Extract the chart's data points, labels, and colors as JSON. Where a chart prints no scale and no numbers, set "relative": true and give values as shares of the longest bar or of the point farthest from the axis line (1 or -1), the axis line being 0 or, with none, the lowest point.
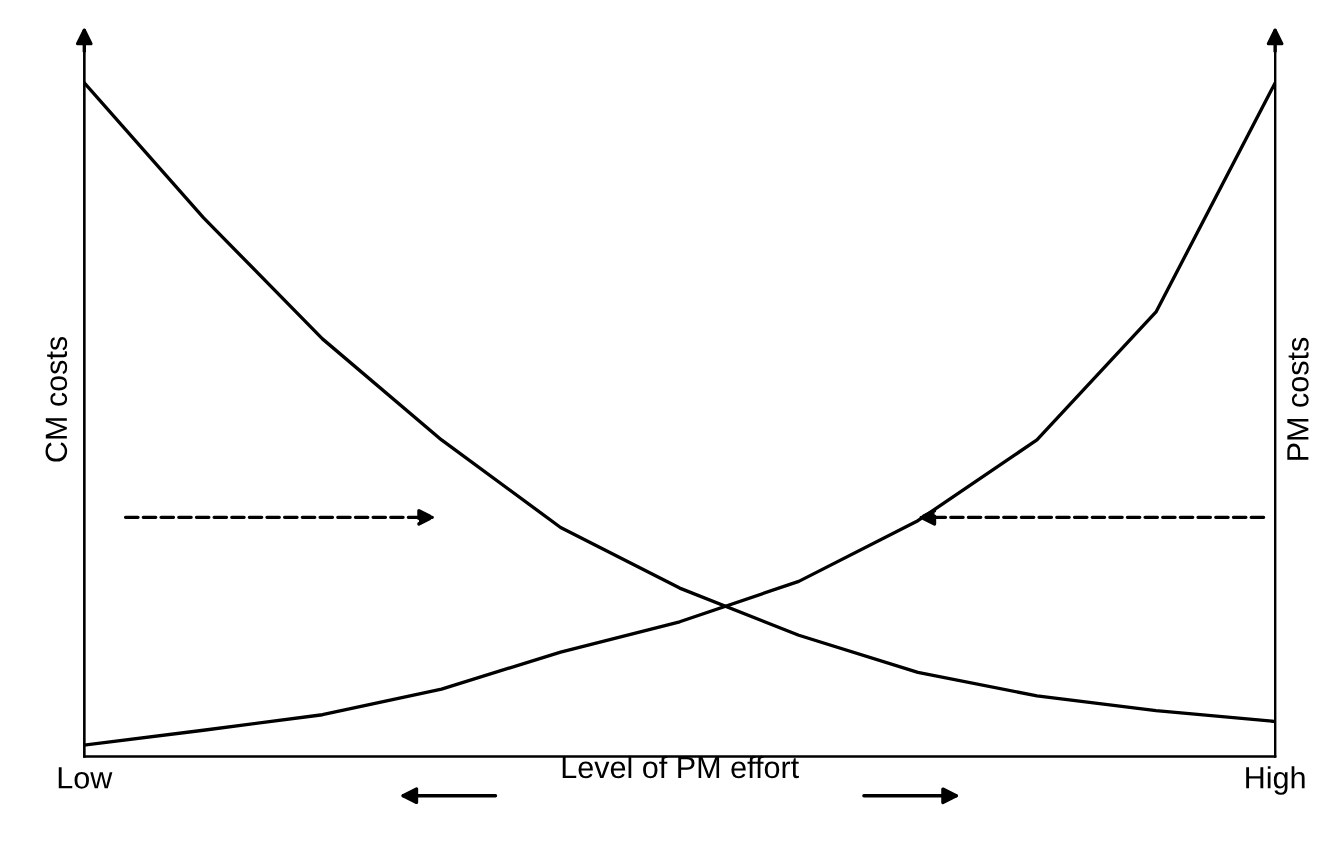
{
  "chart_data": {
    "type": "line",
    "relative": true,
    "xlabel": "Level of PM effort",
    "ylabel": "CM costs",
    "y2label": "PM costs",
    "categories": [
      "Low",
      null,
      null,
      null,
      null,
      null,
      null,
      null,
      null,
      null,
      "High"
    ],
    "series": [
      {
        "color": "#000000",
        "values": [
          1.0,
          0.8,
          0.62,
          0.47,
          0.34,
          0.25,
          0.18,
          0.125,
          0.09,
          0.068,
          0.052
        ]
      },
      {
        "color": "#000000",
        "values": [
          0.017,
          0.039,
          0.062,
          0.1,
          0.155,
          0.2,
          0.26,
          0.35,
          0.47,
          0.66,
          1.0
        ]
      }
    ],
    "grid": false,
    "legend": false,
    "marker": "none",
    "line_style": "solid"
  }
}
